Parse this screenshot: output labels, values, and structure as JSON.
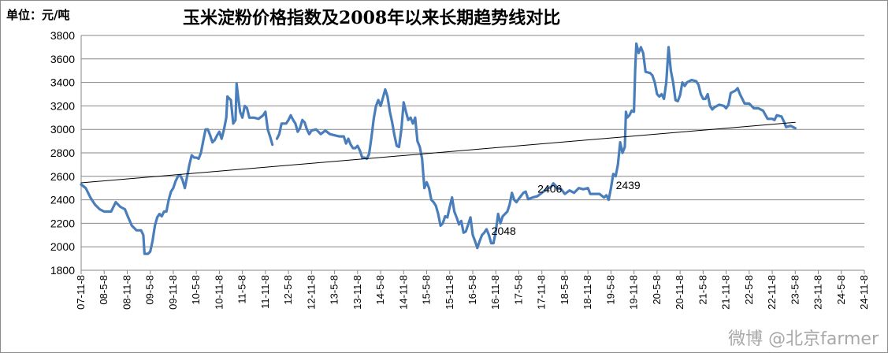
{
  "chart_data": {
    "type": "line",
    "title": "玉米淀粉价格指数及2008年以来长期趋势线对比",
    "unit_label": "单位：元/吨",
    "ylim": [
      1800,
      3800
    ],
    "yticks": [
      1800,
      2000,
      2200,
      2400,
      2600,
      2800,
      3000,
      3200,
      3400,
      3600,
      3800
    ],
    "grid": "horizontal",
    "legend": "none",
    "x_ticks": [
      "07-11-8",
      "08-5-8",
      "08-11-8",
      "09-5-8",
      "09-11-8",
      "10-5-8",
      "10-11-8",
      "11-5-8",
      "11-11-8",
      "12-5-8",
      "12-11-8",
      "13-5-8",
      "13-11-8",
      "14-5-8",
      "14-11-8",
      "15-5-8",
      "15-11-8",
      "16-5-8",
      "16-11-8",
      "17-5-8",
      "17-11-8",
      "18-5-8",
      "18-11-8",
      "19-5-8",
      "19-11-8",
      "20-5-8",
      "20-11-8",
      "21-5-8",
      "21-11-8",
      "22-5-8",
      "22-11-8",
      "23-5-8",
      "23-11-8",
      "24-5-8",
      "24-11-8"
    ],
    "series": [
      {
        "color": "#4a7ebb",
        "points": [
          [
            0.0,
            2530
          ],
          [
            0.2,
            2500
          ],
          [
            0.4,
            2420
          ],
          [
            0.6,
            2360
          ],
          [
            0.8,
            2320
          ],
          [
            1.0,
            2300
          ],
          [
            1.3,
            2300
          ],
          [
            1.5,
            2380
          ],
          [
            1.7,
            2340
          ],
          [
            1.9,
            2320
          ],
          [
            2.0,
            2270
          ],
          [
            2.2,
            2180
          ],
          [
            2.4,
            2140
          ],
          [
            2.6,
            2140
          ],
          [
            2.7,
            2100
          ],
          [
            2.75,
            1940
          ],
          [
            2.9,
            1940
          ],
          [
            3.0,
            1960
          ],
          [
            3.1,
            2050
          ],
          [
            3.2,
            2180
          ],
          [
            3.3,
            2250
          ],
          [
            3.4,
            2280
          ],
          [
            3.5,
            2260
          ],
          [
            3.6,
            2300
          ],
          [
            3.7,
            2300
          ],
          [
            3.8,
            2400
          ],
          [
            3.9,
            2470
          ],
          [
            4.0,
            2500
          ],
          [
            4.1,
            2560
          ],
          [
            4.2,
            2600
          ],
          [
            4.3,
            2610
          ],
          [
            4.4,
            2570
          ],
          [
            4.5,
            2500
          ],
          [
            4.6,
            2600
          ],
          [
            4.7,
            2700
          ],
          [
            4.8,
            2780
          ],
          [
            4.9,
            2760
          ],
          [
            5.0,
            2760
          ],
          [
            5.1,
            2750
          ],
          [
            5.2,
            2800
          ],
          [
            5.3,
            2900
          ],
          [
            5.4,
            3000
          ],
          [
            5.5,
            3000
          ],
          [
            5.6,
            2950
          ],
          [
            5.7,
            2890
          ],
          [
            5.8,
            2910
          ],
          [
            5.9,
            2950
          ],
          [
            6.0,
            2980
          ],
          [
            6.1,
            2920
          ],
          [
            6.2,
            3000
          ],
          [
            6.3,
            3100
          ],
          [
            6.35,
            3280
          ],
          [
            6.5,
            3250
          ],
          [
            6.6,
            3050
          ],
          [
            6.7,
            3080
          ],
          [
            6.75,
            3390
          ],
          [
            6.8,
            3300
          ],
          [
            6.9,
            3150
          ],
          [
            7.0,
            3100
          ],
          [
            7.1,
            3200
          ],
          [
            7.2,
            3180
          ],
          [
            7.3,
            3100
          ],
          [
            7.5,
            3100
          ],
          [
            7.7,
            3090
          ],
          [
            7.9,
            3120
          ],
          [
            8.0,
            3150
          ],
          [
            8.1,
            3000
          ],
          [
            8.2,
            2940
          ],
          [
            8.3,
            2870
          ]
        ]
      },
      {
        "color": "#4a7ebb",
        "points": [
          [
            8.5,
            2920
          ],
          [
            8.6,
            2960
          ],
          [
            8.7,
            3050
          ],
          [
            8.9,
            3050
          ],
          [
            9.0,
            3080
          ],
          [
            9.1,
            3120
          ],
          [
            9.2,
            3080
          ],
          [
            9.3,
            3050
          ],
          [
            9.4,
            2980
          ],
          [
            9.5,
            3010
          ],
          [
            9.6,
            3080
          ],
          [
            9.7,
            3060
          ],
          [
            9.8,
            3000
          ],
          [
            9.9,
            2960
          ],
          [
            10.0,
            2990
          ],
          [
            10.2,
            3000
          ],
          [
            10.4,
            2960
          ],
          [
            10.6,
            2990
          ],
          [
            10.8,
            2960
          ],
          [
            11.0,
            2950
          ],
          [
            11.2,
            2940
          ],
          [
            11.4,
            2940
          ],
          [
            11.5,
            2880
          ],
          [
            11.6,
            2920
          ],
          [
            11.7,
            2870
          ],
          [
            11.8,
            2840
          ],
          [
            11.9,
            2840
          ],
          [
            12.0,
            2860
          ],
          [
            12.1,
            2820
          ],
          [
            12.2,
            2760
          ],
          [
            12.3,
            2760
          ],
          [
            12.4,
            2750
          ],
          [
            12.5,
            2790
          ],
          [
            12.6,
            2930
          ],
          [
            12.7,
            3090
          ],
          [
            12.8,
            3200
          ],
          [
            12.9,
            3250
          ],
          [
            13.0,
            3200
          ],
          [
            13.1,
            3270
          ],
          [
            13.2,
            3340
          ],
          [
            13.3,
            3280
          ],
          [
            13.4,
            3150
          ],
          [
            13.5,
            3060
          ],
          [
            13.6,
            2950
          ],
          [
            13.7,
            2860
          ],
          [
            13.8,
            2850
          ],
          [
            13.9,
            3000
          ],
          [
            14.0,
            3230
          ],
          [
            14.1,
            3150
          ],
          [
            14.2,
            3080
          ],
          [
            14.3,
            3100
          ],
          [
            14.4,
            3050
          ],
          [
            14.5,
            3100
          ],
          [
            14.6,
            2900
          ],
          [
            14.7,
            2850
          ],
          [
            14.8,
            2750
          ],
          [
            14.9,
            2500
          ],
          [
            15.0,
            2550
          ],
          [
            15.1,
            2500
          ],
          [
            15.2,
            2400
          ],
          [
            15.3,
            2380
          ],
          [
            15.4,
            2350
          ],
          [
            15.5,
            2280
          ],
          [
            15.6,
            2180
          ],
          [
            15.7,
            2200
          ],
          [
            15.8,
            2260
          ],
          [
            15.9,
            2250
          ],
          [
            16.0,
            2340
          ],
          [
            16.1,
            2420
          ],
          [
            16.2,
            2300
          ],
          [
            16.3,
            2250
          ],
          [
            16.4,
            2190
          ],
          [
            16.5,
            2220
          ],
          [
            16.6,
            2120
          ],
          [
            16.7,
            2130
          ],
          [
            16.8,
            2190
          ],
          [
            16.9,
            2250
          ],
          [
            17.0,
            2100
          ],
          [
            17.1,
            2048
          ],
          [
            17.2,
            1990
          ],
          [
            17.3,
            2050
          ],
          [
            17.4,
            2100
          ],
          [
            17.5,
            2120
          ],
          [
            17.6,
            2150
          ],
          [
            17.7,
            2100
          ],
          [
            17.8,
            2030
          ],
          [
            17.9,
            2030
          ],
          [
            18.0,
            2130
          ],
          [
            18.1,
            2280
          ],
          [
            18.2,
            2200
          ],
          [
            18.3,
            2260
          ],
          [
            18.4,
            2280
          ],
          [
            18.5,
            2300
          ],
          [
            18.6,
            2360
          ],
          [
            18.7,
            2460
          ],
          [
            18.8,
            2400
          ],
          [
            18.9,
            2380
          ],
          [
            19.0,
            2410
          ],
          [
            19.2,
            2460
          ],
          [
            19.3,
            2470
          ],
          [
            19.4,
            2406
          ],
          [
            19.6,
            2420
          ],
          [
            19.8,
            2430
          ],
          [
            20.0,
            2460
          ],
          [
            20.2,
            2490
          ],
          [
            20.4,
            2510
          ],
          [
            20.5,
            2540
          ],
          [
            20.6,
            2520
          ],
          [
            20.7,
            2490
          ],
          [
            20.8,
            2500
          ],
          [
            21.0,
            2450
          ],
          [
            21.2,
            2480
          ],
          [
            21.4,
            2460
          ],
          [
            21.6,
            2500
          ],
          [
            21.8,
            2490
          ],
          [
            22.0,
            2500
          ],
          [
            22.1,
            2450
          ],
          [
            22.3,
            2450
          ],
          [
            22.5,
            2450
          ],
          [
            22.7,
            2420
          ],
          [
            22.8,
            2439
          ],
          [
            22.9,
            2400
          ],
          [
            23.0,
            2500
          ],
          [
            23.1,
            2620
          ],
          [
            23.2,
            2600
          ],
          [
            23.3,
            2700
          ],
          [
            23.4,
            2890
          ],
          [
            23.5,
            2800
          ],
          [
            23.6,
            2850
          ],
          [
            23.65,
            3150
          ],
          [
            23.7,
            3100
          ],
          [
            23.8,
            3120
          ],
          [
            23.9,
            3160
          ],
          [
            24.0,
            3150
          ],
          [
            24.05,
            3500
          ],
          [
            24.1,
            3730
          ],
          [
            24.2,
            3650
          ],
          [
            24.3,
            3700
          ],
          [
            24.4,
            3650
          ],
          [
            24.5,
            3490
          ],
          [
            24.7,
            3480
          ],
          [
            24.8,
            3460
          ],
          [
            24.9,
            3400
          ],
          [
            25.0,
            3300
          ],
          [
            25.1,
            3280
          ],
          [
            25.2,
            3300
          ],
          [
            25.3,
            3260
          ],
          [
            25.4,
            3400
          ],
          [
            25.5,
            3700
          ],
          [
            25.6,
            3500
          ],
          [
            25.7,
            3400
          ],
          [
            25.8,
            3250
          ],
          [
            25.9,
            3240
          ],
          [
            26.0,
            3290
          ],
          [
            26.1,
            3400
          ],
          [
            26.2,
            3370
          ],
          [
            26.3,
            3400
          ],
          [
            26.5,
            3420
          ],
          [
            26.7,
            3410
          ],
          [
            26.8,
            3380
          ],
          [
            26.9,
            3300
          ],
          [
            27.0,
            3260
          ],
          [
            27.1,
            3260
          ],
          [
            27.2,
            3300
          ],
          [
            27.3,
            3200
          ],
          [
            27.4,
            3170
          ],
          [
            27.5,
            3190
          ],
          [
            27.7,
            3210
          ],
          [
            27.9,
            3200
          ],
          [
            28.0,
            3180
          ],
          [
            28.1,
            3210
          ],
          [
            28.2,
            3310
          ],
          [
            28.4,
            3330
          ],
          [
            28.5,
            3350
          ],
          [
            28.6,
            3300
          ],
          [
            28.7,
            3260
          ],
          [
            28.8,
            3220
          ],
          [
            29.0,
            3220
          ],
          [
            29.2,
            3180
          ],
          [
            29.4,
            3180
          ],
          [
            29.6,
            3160
          ],
          [
            29.8,
            3090
          ],
          [
            30.0,
            3090
          ],
          [
            30.1,
            3080
          ],
          [
            30.2,
            3120
          ],
          [
            30.4,
            3110
          ],
          [
            30.5,
            3070
          ],
          [
            30.6,
            3020
          ],
          [
            30.8,
            3030
          ],
          [
            31.0,
            3010
          ]
        ]
      },
      {
        "color": "#000000",
        "points": [
          [
            0.0,
            2545
          ],
          [
            31.0,
            3060
          ]
        ]
      }
    ],
    "annotations": [
      {
        "text": "2048",
        "x": 17.4,
        "y": 2048
      },
      {
        "text": "2406",
        "x": 19.4,
        "y": 2406
      },
      {
        "text": "2439",
        "x": 22.8,
        "y": 2439
      }
    ]
  },
  "watermark": "微博 @北京farmer"
}
